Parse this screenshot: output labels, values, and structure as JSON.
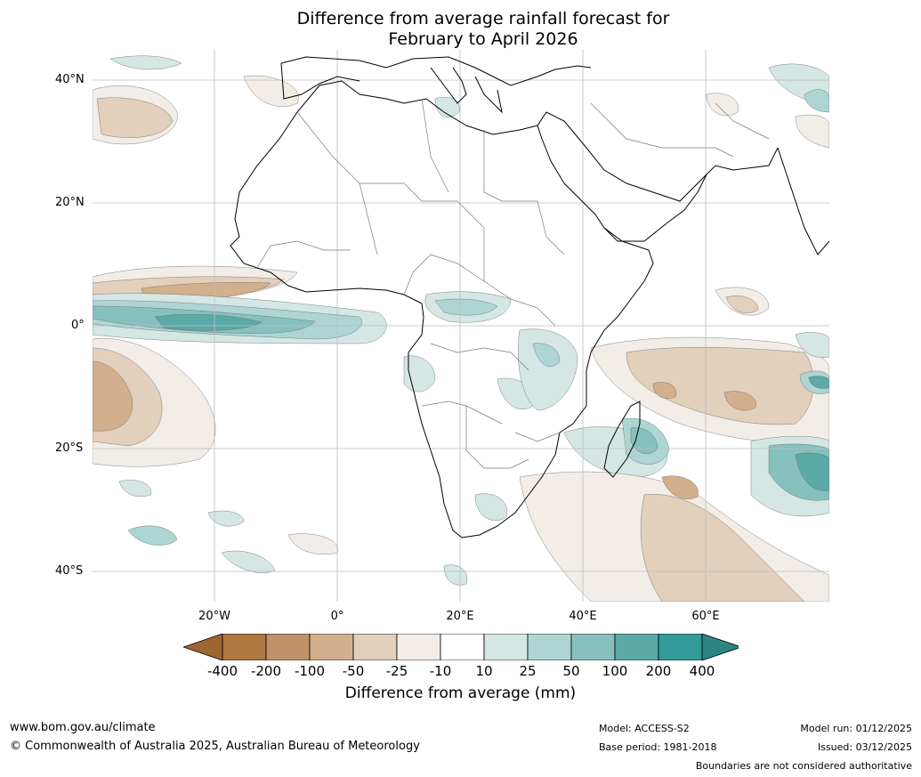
{
  "title": {
    "line1": "Difference from average rainfall forecast for",
    "line2": "February to April 2026"
  },
  "map": {
    "lat_labels": [
      "40°N",
      "20°N",
      "0°",
      "20°S",
      "40°S"
    ],
    "lon_labels": [
      "20°W",
      "0°",
      "20°E",
      "40°E",
      "60°E"
    ]
  },
  "colorbar": {
    "title": "Difference from average (mm)",
    "ticks": [
      "-400",
      "-200",
      "-100",
      "-50",
      "-25",
      "-10",
      "10",
      "25",
      "50",
      "100",
      "200",
      "400"
    ],
    "colors": {
      "below_min": "#9c6630",
      "bins": [
        "#ad7840",
        "#c19268",
        "#d2af8d",
        "#e2cfbc",
        "#f2ede6",
        "#ffffff",
        "#d4e7e5",
        "#add5d3",
        "#86c1bf",
        "#5aaaa8",
        "#329a97"
      ],
      "above_max": "#2c8583"
    }
  },
  "footer": {
    "website": "www.bom.gov.au/climate",
    "copyright": "© Commonwealth of Australia 2025, Australian Bureau of Meteorology",
    "model": "Model: ACCESS-S2",
    "base_period": "Base period: 1981-2018",
    "model_run": "Model run: 01/12/2025",
    "issued": "Issued: 03/12/2025",
    "disclaimer": "Boundaries are not considered authoritative"
  }
}
